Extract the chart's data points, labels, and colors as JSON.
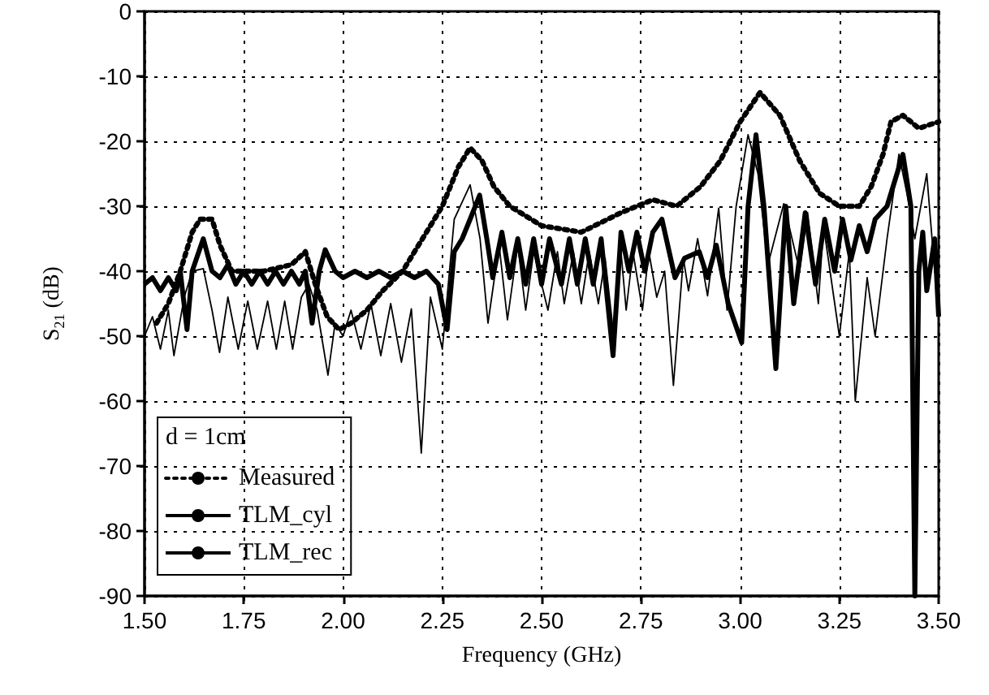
{
  "chart_data": {
    "type": "line",
    "xlabel": "Frequency (GHz)",
    "ylabel": "S$_{21}$ (dB)",
    "legend_title": "d = 1cm",
    "legend": "bottom left",
    "grid": true,
    "marker": "none",
    "xlim": [
      1.5,
      3.5
    ],
    "xticks": [
      {
        "value": 1.5,
        "label": "1.50"
      },
      {
        "value": 1.75,
        "label": "1.75"
      },
      {
        "value": 2,
        "label": "2.00"
      },
      {
        "value": 2.25,
        "label": "2.25"
      },
      {
        "value": 2.5,
        "label": "2.50"
      },
      {
        "value": 2.75,
        "label": "2.75"
      },
      {
        "value": 3,
        "label": "3.00"
      },
      {
        "value": 3.25,
        "label": "3.25"
      },
      {
        "value": 3.5,
        "label": "3.50"
      }
    ],
    "ylim": [
      -90,
      0
    ],
    "yticks": [
      -90,
      -80,
      -70,
      -60,
      -50,
      -40,
      -30,
      -20,
      -10,
      0
    ],
    "series": [
      {
        "name": "Measured",
        "color": "#000000",
        "line_style": "dotted",
        "x": [
          1.53,
          1.56,
          1.59,
          1.62,
          1.64,
          1.67,
          1.69,
          1.72,
          1.8,
          1.87,
          1.905,
          1.93,
          1.96,
          1.99,
          2.02,
          2.06,
          2.1,
          2.15,
          2.2,
          2.25,
          2.29,
          2.32,
          2.35,
          2.38,
          2.42,
          2.5,
          2.6,
          2.7,
          2.78,
          2.84,
          2.9,
          2.95,
          3.0,
          3.05,
          3.1,
          3.15,
          3.2,
          3.25,
          3.3,
          3.33,
          3.36,
          3.38,
          3.41,
          3.45,
          3.5
        ],
        "values": [
          -48,
          -45,
          -40,
          -34,
          -32,
          -32,
          -36,
          -40,
          -40,
          -39,
          -37,
          -42,
          -47,
          -49,
          -48,
          -46,
          -43,
          -40,
          -35,
          -30,
          -24,
          -21,
          -23,
          -27,
          -30,
          -33,
          -34,
          -31,
          -29,
          -30,
          -27,
          -23,
          -17,
          -12.5,
          -16,
          -23,
          -28,
          -30,
          -30,
          -27,
          -22,
          -17,
          -16,
          -18,
          -17
        ]
      },
      {
        "name": "TLM_cyl",
        "color": "#000000",
        "line_style": "solid",
        "x": [
          1.5,
          1.52,
          1.54,
          1.56,
          1.58,
          1.59,
          1.607,
          1.62,
          1.648,
          1.67,
          1.69,
          1.71,
          1.73,
          1.75,
          1.77,
          1.79,
          1.81,
          1.83,
          1.85,
          1.87,
          1.89,
          1.905,
          1.922,
          1.94,
          1.955,
          1.98,
          2.0,
          2.03,
          2.06,
          2.09,
          2.12,
          2.15,
          2.18,
          2.21,
          2.24,
          2.262,
          2.28,
          2.3,
          2.32,
          2.344,
          2.362,
          2.377,
          2.4,
          2.42,
          2.44,
          2.46,
          2.48,
          2.5,
          2.52,
          2.55,
          2.57,
          2.59,
          2.61,
          2.63,
          2.65,
          2.68,
          2.7,
          2.72,
          2.74,
          2.76,
          2.78,
          2.803,
          2.836,
          2.86,
          2.897,
          2.918,
          2.94,
          2.97,
          3.004,
          3.02,
          3.04,
          3.06,
          3.09,
          3.115,
          3.135,
          3.164,
          3.19,
          3.213,
          3.238,
          3.258,
          3.279,
          3.3,
          3.32,
          3.34,
          3.37,
          3.41,
          3.43,
          3.44,
          3.45,
          3.46,
          3.47,
          3.49,
          3.5
        ],
        "values": [
          -42,
          -41,
          -43,
          -41,
          -43,
          -40,
          -49,
          -40,
          -35,
          -40,
          -41,
          -39,
          -42,
          -40,
          -42,
          -40,
          -42,
          -40,
          -42,
          -40,
          -42,
          -40,
          -48,
          -40,
          -36.7,
          -40,
          -41,
          -40,
          -41,
          -40,
          -41,
          -40,
          -41,
          -40,
          -42,
          -49,
          -37,
          -35,
          -32,
          -28.3,
          -35,
          -41,
          -34,
          -41,
          -35,
          -42,
          -35,
          -42,
          -35,
          -42,
          -35,
          -42,
          -35,
          -42,
          -35,
          -53,
          -34,
          -40,
          -34,
          -40,
          -34,
          -32,
          -41,
          -38,
          -37,
          -41,
          -36,
          -45,
          -51,
          -30,
          -19,
          -30,
          -55,
          -30,
          -45,
          -31,
          -42,
          -32,
          -40,
          -32,
          -38.3,
          -33,
          -37,
          -32,
          -30,
          -22,
          -30,
          -90,
          -40,
          -34,
          -43,
          -35,
          -47
        ]
      },
      {
        "name": "TLM_rec",
        "color": "#000000",
        "line_style": "solid",
        "x": [
          1.5,
          1.52,
          1.54,
          1.56,
          1.574,
          1.6,
          1.62,
          1.648,
          1.67,
          1.689,
          1.71,
          1.736,
          1.76,
          1.784,
          1.81,
          1.832,
          1.853,
          1.873,
          1.895,
          1.914,
          1.935,
          1.962,
          1.98,
          2.0,
          2.02,
          2.045,
          2.07,
          2.095,
          2.12,
          2.147,
          2.172,
          2.197,
          2.22,
          2.25,
          2.28,
          2.32,
          2.345,
          2.365,
          2.393,
          2.414,
          2.44,
          2.46,
          2.48,
          2.516,
          2.54,
          2.557,
          2.58,
          2.6,
          2.62,
          2.643,
          2.66,
          2.68,
          2.7,
          2.713,
          2.73,
          2.754,
          2.77,
          2.79,
          2.81,
          2.832,
          2.857,
          2.87,
          2.893,
          2.918,
          2.946,
          2.967,
          2.99,
          3.02,
          3.045,
          3.07,
          3.11,
          3.15,
          3.17,
          3.197,
          3.21,
          3.25,
          3.275,
          3.29,
          3.32,
          3.34,
          3.37,
          3.4,
          3.42,
          3.44,
          3.47,
          3.49,
          3.5
        ],
        "values": [
          -50,
          -47,
          -52,
          -46,
          -53,
          -44,
          -40,
          -39.6,
          -46,
          -52.5,
          -44,
          -52,
          -44.6,
          -52,
          -44.6,
          -52,
          -44.6,
          -52,
          -44,
          -42,
          -46,
          -56,
          -48,
          -50,
          -46,
          -52,
          -45,
          -53,
          -45,
          -54,
          -45.8,
          -68,
          -44,
          -52,
          -32,
          -26.7,
          -35,
          -48,
          -36,
          -47.5,
          -36,
          -46,
          -37,
          -46,
          -37,
          -45,
          -37,
          -45,
          -37,
          -45,
          -38,
          -49,
          -37,
          -46,
          -37,
          -46,
          -37,
          -44,
          -40,
          -57.6,
          -38,
          -43,
          -35,
          -43.8,
          -30.3,
          -46,
          -30,
          -19,
          -25,
          -39,
          -29.6,
          -40,
          -31,
          -45,
          -33,
          -50,
          -37,
          -60,
          -41,
          -50,
          -35,
          -22,
          -28,
          -35,
          -25,
          -40,
          -38
        ]
      }
    ]
  }
}
